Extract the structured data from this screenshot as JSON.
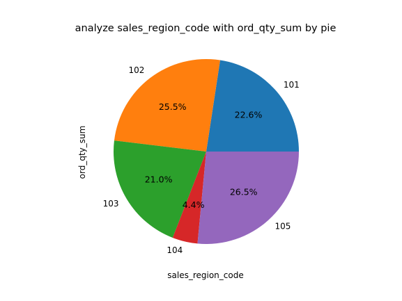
{
  "chart_data": {
    "type": "pie",
    "title": "analyze sales_region_code with ord_qty_sum by pie",
    "xlabel": "sales_region_code",
    "ylabel": "ord_qty_sum",
    "categories": [
      "101",
      "102",
      "103",
      "104",
      "105"
    ],
    "values": [
      22.6,
      25.5,
      21.0,
      4.4,
      26.5
    ],
    "value_labels": [
      "22.6%",
      "25.5%",
      "21.0%",
      "4.4%",
      "26.5%"
    ],
    "colors": [
      "#1f77b4",
      "#ff7f0e",
      "#2ca02c",
      "#d62728",
      "#9467bd"
    ],
    "start_angle_deg": 0,
    "direction": "counterclockwise"
  }
}
